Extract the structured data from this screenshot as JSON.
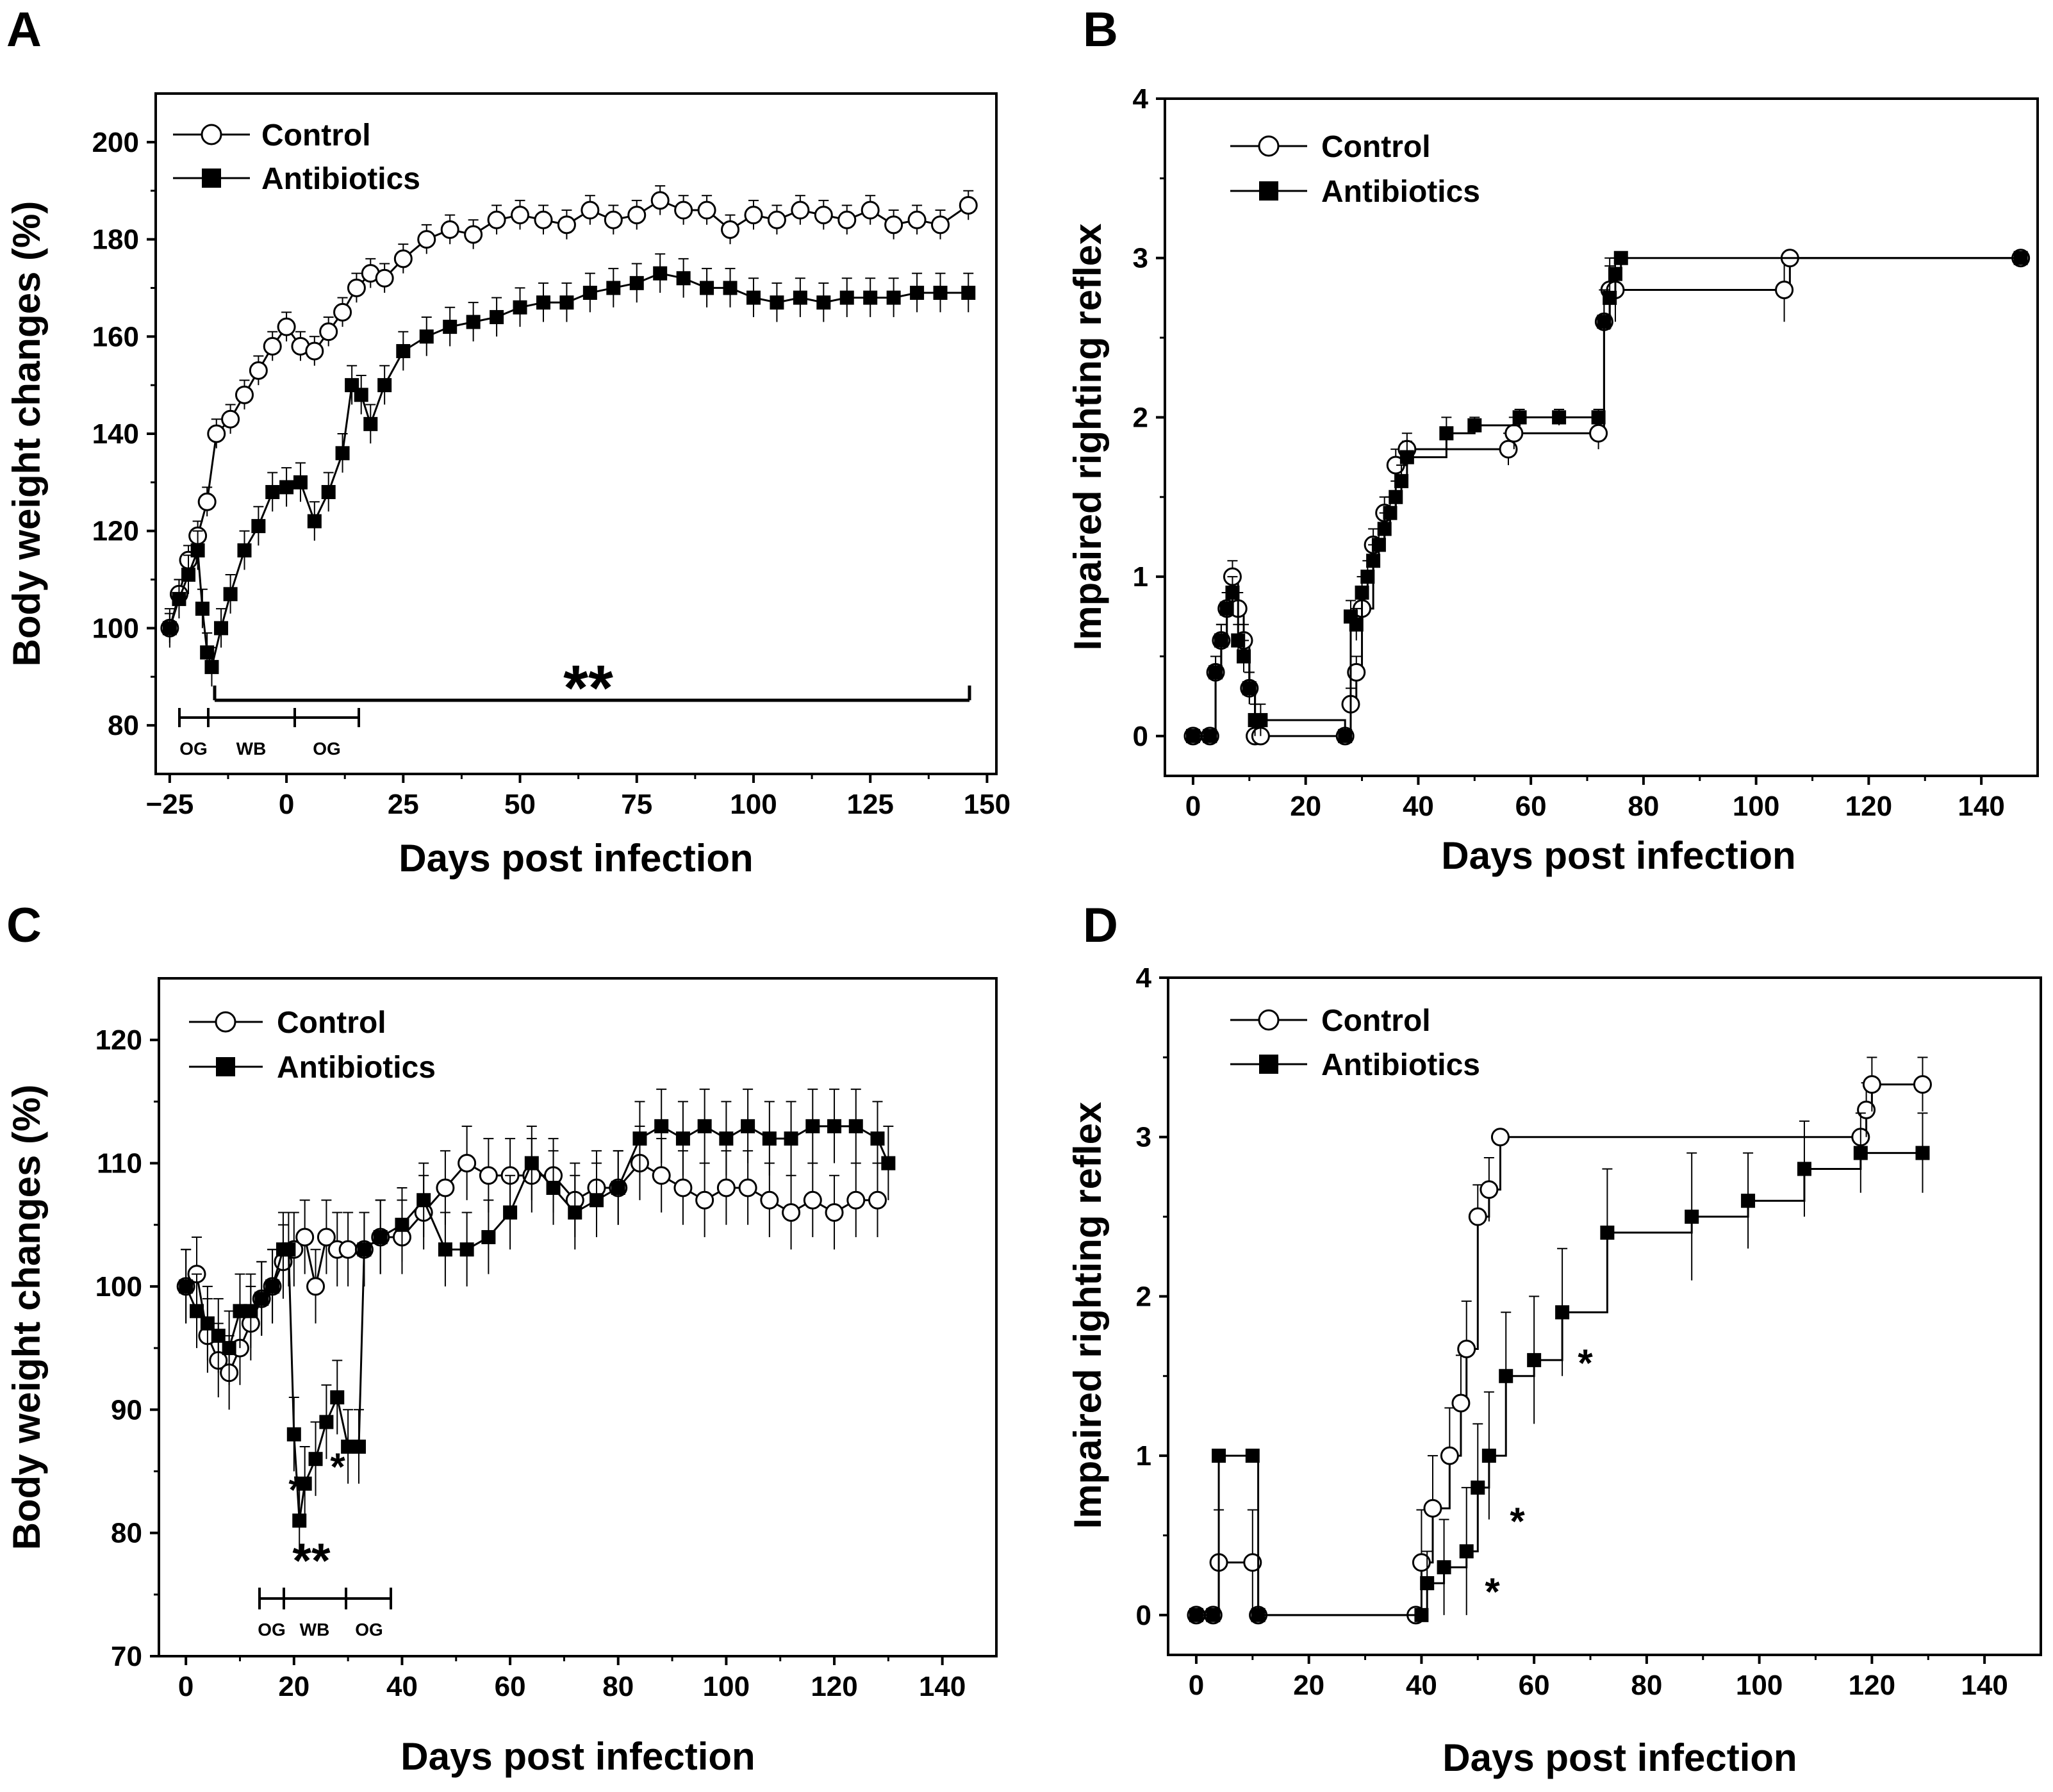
{
  "colors": {
    "ink": "#000000",
    "background": "#ffffff",
    "marker_open": "#ffffff"
  },
  "figure": {
    "panels": [
      {
        "letter": "A",
        "ylabel": "Body weight changes (%)",
        "xlabel": "Days post infection",
        "xticks": [
          -25,
          0,
          25,
          50,
          75,
          100,
          125,
          150
        ],
        "xtick_labels": [
          "−25",
          "0",
          "25",
          "50",
          "75",
          "100",
          "125",
          "150"
        ],
        "yticks": [
          80,
          100,
          120,
          140,
          160,
          180,
          200
        ],
        "significance": "**",
        "treatment_bars": [
          "OG",
          "WB",
          "OG"
        ]
      },
      {
        "letter": "B",
        "ylabel": "Impaired righting reflex",
        "xlabel": "Days post infection",
        "xticks": [
          0,
          20,
          40,
          60,
          80,
          100,
          120,
          140
        ],
        "xtick_labels": [
          "0",
          "20",
          "40",
          "60",
          "80",
          "100",
          "120",
          "140"
        ],
        "yticks": [
          0,
          1,
          2,
          3,
          4
        ]
      },
      {
        "letter": "C",
        "ylabel": "Body weight changes (%)",
        "xlabel": "Days post infection",
        "xticks": [
          0,
          20,
          40,
          60,
          80,
          100,
          120,
          140
        ],
        "xtick_labels": [
          "0",
          "20",
          "40",
          "60",
          "80",
          "100",
          "120",
          "140"
        ],
        "yticks": [
          70,
          80,
          90,
          100,
          110,
          120
        ],
        "significance_single": "*",
        "significance_double": "**",
        "treatment_bars": [
          "OG",
          "WB",
          "OG"
        ]
      },
      {
        "letter": "D",
        "ylabel": "Impaired righting reflex",
        "xlabel": "Days post infection",
        "xticks": [
          0,
          20,
          40,
          60,
          80,
          100,
          120,
          140
        ],
        "xtick_labels": [
          "0",
          "20",
          "40",
          "60",
          "80",
          "100",
          "120",
          "140"
        ],
        "yticks": [
          0,
          1,
          2,
          3,
          4
        ],
        "significance_single": "*"
      }
    ],
    "legend": {
      "control": "Control",
      "antibiotics": "Antibiotics"
    }
  },
  "chart_data": [
    {
      "panel": "A",
      "type": "line",
      "title": "",
      "xlabel": "Days post infection",
      "ylabel": "Body weight changes (%)",
      "xlim": [
        -28,
        152
      ],
      "ylim": [
        70,
        210
      ],
      "series": [
        {
          "name": "Control",
          "marker": "open-circle",
          "err": 3,
          "x": [
            -25,
            -23,
            -21,
            -19,
            -17,
            -15,
            -12,
            -9,
            -6,
            -3,
            0,
            3,
            6,
            9,
            12,
            15,
            18,
            21,
            25,
            30,
            35,
            40,
            45,
            50,
            55,
            60,
            65,
            70,
            75,
            80,
            85,
            90,
            95,
            100,
            105,
            110,
            115,
            120,
            125,
            130,
            135,
            140,
            146
          ],
          "y": [
            100,
            107,
            114,
            119,
            126,
            140,
            143,
            148,
            153,
            158,
            162,
            158,
            157,
            161,
            165,
            170,
            173,
            172,
            176,
            180,
            182,
            181,
            184,
            185,
            184,
            183,
            186,
            184,
            185,
            188,
            186,
            186,
            182,
            185,
            184,
            186,
            185,
            184,
            186,
            183,
            184,
            183,
            187
          ]
        },
        {
          "name": "Antibiotics",
          "marker": "filled-square",
          "err": 4,
          "x": [
            -25,
            -23,
            -21,
            -19,
            -18,
            -17,
            -16,
            -14,
            -12,
            -9,
            -6,
            -3,
            0,
            3,
            6,
            9,
            12,
            14,
            16,
            18,
            21,
            25,
            30,
            35,
            40,
            45,
            50,
            55,
            60,
            65,
            70,
            75,
            80,
            85,
            90,
            95,
            100,
            105,
            110,
            115,
            120,
            125,
            130,
            135,
            140,
            146
          ],
          "y": [
            100,
            106,
            111,
            116,
            104,
            95,
            92,
            100,
            107,
            116,
            121,
            128,
            129,
            130,
            122,
            128,
            136,
            150,
            148,
            142,
            150,
            157,
            160,
            162,
            163,
            164,
            166,
            167,
            167,
            169,
            170,
            171,
            173,
            172,
            170,
            170,
            168,
            167,
            168,
            167,
            168,
            168,
            168,
            169,
            169,
            169
          ]
        }
      ],
      "annotations": [
        "**",
        "OG",
        "WB",
        "OG"
      ]
    },
    {
      "panel": "B",
      "type": "line",
      "title": "",
      "xlabel": "Days post infection",
      "ylabel": "Impaired righting reflex",
      "xlim": [
        -5,
        150
      ],
      "ylim": [
        -0.25,
        4
      ],
      "series": [
        {
          "name": "Control",
          "marker": "open-circle",
          "x": [
            0,
            3,
            4,
            5,
            6,
            7,
            8,
            9,
            10,
            11,
            12,
            27,
            28,
            29,
            30,
            32,
            34,
            36,
            38,
            56,
            57,
            72,
            73,
            74,
            75,
            105,
            106,
            147
          ],
          "y": [
            0,
            0,
            0.4,
            0.6,
            0.8,
            1.0,
            0.8,
            0.6,
            0.3,
            0,
            0,
            0,
            0.2,
            0.4,
            0.8,
            1.2,
            1.4,
            1.7,
            1.8,
            1.8,
            1.9,
            1.9,
            2.6,
            2.8,
            2.8,
            2.8,
            3.0,
            3.0
          ],
          "err": [
            0,
            0,
            0.1,
            0.1,
            0.1,
            0.1,
            0.1,
            0.1,
            0.1,
            0,
            0,
            0,
            0.1,
            0.1,
            0.1,
            0.1,
            0.1,
            0.1,
            0.1,
            0.1,
            0.1,
            0.1,
            0.2,
            0.2,
            0.2,
            0.2,
            0,
            0
          ]
        },
        {
          "name": "Antibiotics",
          "marker": "filled-square",
          "x": [
            0,
            3,
            4,
            5,
            6,
            7,
            8,
            9,
            10,
            11,
            12,
            27,
            28,
            29,
            30,
            31,
            32,
            33,
            34,
            35,
            36,
            37,
            38,
            45,
            50,
            58,
            65,
            72,
            73,
            74,
            75,
            76,
            147
          ],
          "y": [
            0,
            0,
            0.4,
            0.6,
            0.8,
            0.9,
            0.6,
            0.5,
            0.3,
            0.1,
            0.1,
            0,
            0.75,
            0.7,
            0.9,
            1.0,
            1.1,
            1.2,
            1.3,
            1.4,
            1.5,
            1.6,
            1.75,
            1.9,
            1.95,
            2.0,
            2.0,
            2.0,
            2.6,
            2.75,
            2.9,
            3.0,
            3.0
          ],
          "err": [
            0,
            0,
            0.1,
            0.1,
            0.1,
            0.1,
            0.1,
            0.1,
            0.1,
            0.1,
            0.1,
            0,
            0.1,
            0.1,
            0.1,
            0.1,
            0.1,
            0.1,
            0.1,
            0.1,
            0.1,
            0.1,
            0.1,
            0.1,
            0.05,
            0.05,
            0.05,
            0.05,
            0.2,
            0.2,
            0.1,
            0,
            0
          ]
        }
      ]
    },
    {
      "panel": "C",
      "type": "line",
      "title": "",
      "xlabel": "Days post infection",
      "ylabel": "Body weight changes (%)",
      "xlim": [
        -5,
        150
      ],
      "ylim": [
        70,
        125
      ],
      "series": [
        {
          "name": "Control",
          "marker": "open-circle",
          "err": 3,
          "x": [
            0,
            2,
            4,
            6,
            8,
            10,
            12,
            14,
            16,
            18,
            20,
            22,
            24,
            26,
            28,
            30,
            33,
            36,
            40,
            44,
            48,
            52,
            56,
            60,
            64,
            68,
            72,
            76,
            80,
            84,
            88,
            92,
            96,
            100,
            104,
            108,
            112,
            116,
            120,
            124,
            128
          ],
          "y": [
            100,
            101,
            96,
            94,
            93,
            95,
            97,
            99,
            100,
            102,
            103,
            104,
            100,
            104,
            103,
            103,
            103,
            104,
            104,
            106,
            108,
            110,
            109,
            109,
            109,
            109,
            107,
            108,
            108,
            110,
            109,
            108,
            107,
            108,
            108,
            107,
            106,
            107,
            106,
            107,
            107
          ]
        },
        {
          "name": "Antibiotics",
          "marker": "filled-square",
          "err": 3,
          "x": [
            0,
            2,
            4,
            6,
            8,
            10,
            12,
            14,
            16,
            18,
            19,
            20,
            21,
            22,
            24,
            26,
            28,
            30,
            32,
            33,
            36,
            40,
            44,
            48,
            52,
            56,
            60,
            64,
            68,
            72,
            76,
            80,
            84,
            88,
            92,
            96,
            100,
            104,
            108,
            112,
            116,
            120,
            124,
            128,
            130
          ],
          "y": [
            100,
            98,
            97,
            96,
            95,
            98,
            98,
            99,
            100,
            103,
            103,
            88,
            81,
            84,
            86,
            89,
            91,
            87,
            87,
            103,
            104,
            105,
            107,
            103,
            103,
            104,
            106,
            110,
            108,
            106,
            107,
            108,
            112,
            113,
            112,
            113,
            112,
            113,
            112,
            112,
            113,
            113,
            113,
            112,
            110
          ]
        }
      ],
      "annotations": [
        "*",
        "*",
        "**",
        "OG",
        "WB",
        "OG"
      ]
    },
    {
      "panel": "D",
      "type": "line",
      "title": "",
      "xlabel": "Days post infection",
      "ylabel": "Impaired righting reflex",
      "xlim": [
        -5,
        150
      ],
      "ylim": [
        -0.25,
        4
      ],
      "series": [
        {
          "name": "Control",
          "marker": "open-circle",
          "x": [
            0,
            3,
            4,
            10,
            11,
            39,
            40,
            42,
            45,
            47,
            48,
            50,
            52,
            54,
            118,
            119,
            120,
            129
          ],
          "y": [
            0,
            0,
            0.33,
            0.33,
            0,
            0,
            0.33,
            0.67,
            1.0,
            1.33,
            1.67,
            2.5,
            2.67,
            3.0,
            3.0,
            3.17,
            3.33,
            3.33
          ],
          "err": [
            0,
            0,
            0.33,
            0.33,
            0,
            0,
            0.33,
            0.33,
            0.3,
            0.3,
            0.3,
            0.2,
            0.2,
            0,
            0,
            0.17,
            0.17,
            0.17
          ]
        },
        {
          "name": "Antibiotics",
          "marker": "filled-square",
          "x": [
            0,
            3,
            4,
            10,
            11,
            40,
            41,
            44,
            48,
            50,
            52,
            55,
            60,
            65,
            73,
            88,
            98,
            108,
            118,
            129
          ],
          "y": [
            0,
            0,
            1.0,
            1.0,
            0,
            0,
            0.2,
            0.3,
            0.4,
            0.8,
            1.0,
            1.5,
            1.6,
            1.9,
            2.4,
            2.5,
            2.6,
            2.8,
            2.9,
            2.9
          ],
          "err": [
            0,
            0,
            0,
            0,
            0,
            0,
            0.2,
            0.3,
            0.4,
            0.4,
            0.4,
            0.4,
            0.4,
            0.4,
            0.4,
            0.4,
            0.3,
            0.3,
            0.25,
            0.25
          ]
        }
      ],
      "annotations": [
        "*",
        "*",
        "*"
      ]
    }
  ]
}
